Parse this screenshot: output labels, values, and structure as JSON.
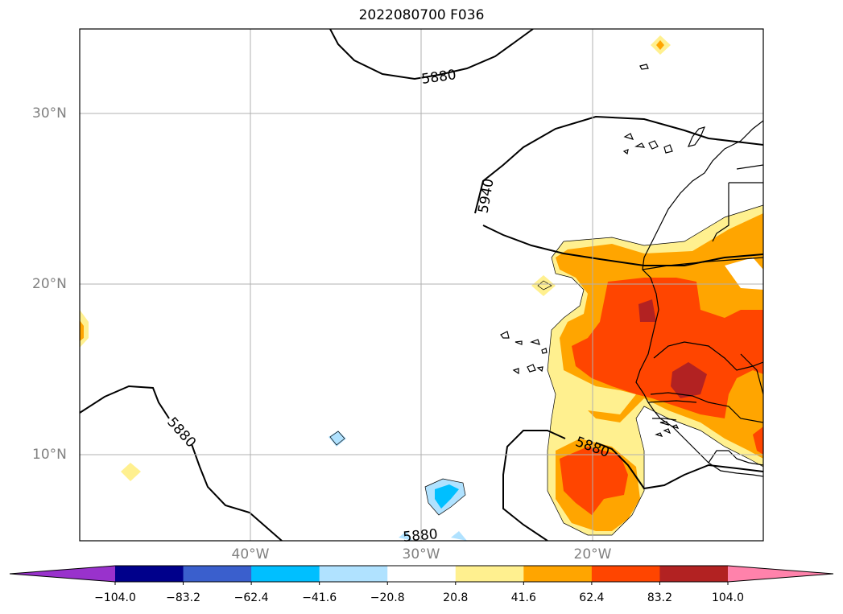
{
  "title": "2022080700 F036",
  "map": {
    "lat_labels": [
      "30°N",
      "20°N",
      "10°N"
    ],
    "lon_labels": [
      "40°W",
      "30°W",
      "20°W"
    ],
    "contour_labels": [
      "5880",
      "5940",
      "5880",
      "5880",
      "5880"
    ],
    "grid": true
  },
  "colorbar": {
    "ticks": [
      "−104.0",
      "−83.2",
      "−62.4",
      "−41.6",
      "−20.8",
      "20.8",
      "41.6",
      "62.4",
      "83.2",
      "104.0"
    ],
    "colors": [
      "#9932cc",
      "#00008b",
      "#3a5fcd",
      "#00bfff",
      "#b0e2ff",
      "#ffffff",
      "#fff08f",
      "#ffa500",
      "#ff4500",
      "#b22222",
      "#ff82ab"
    ],
    "extend": "both"
  }
}
